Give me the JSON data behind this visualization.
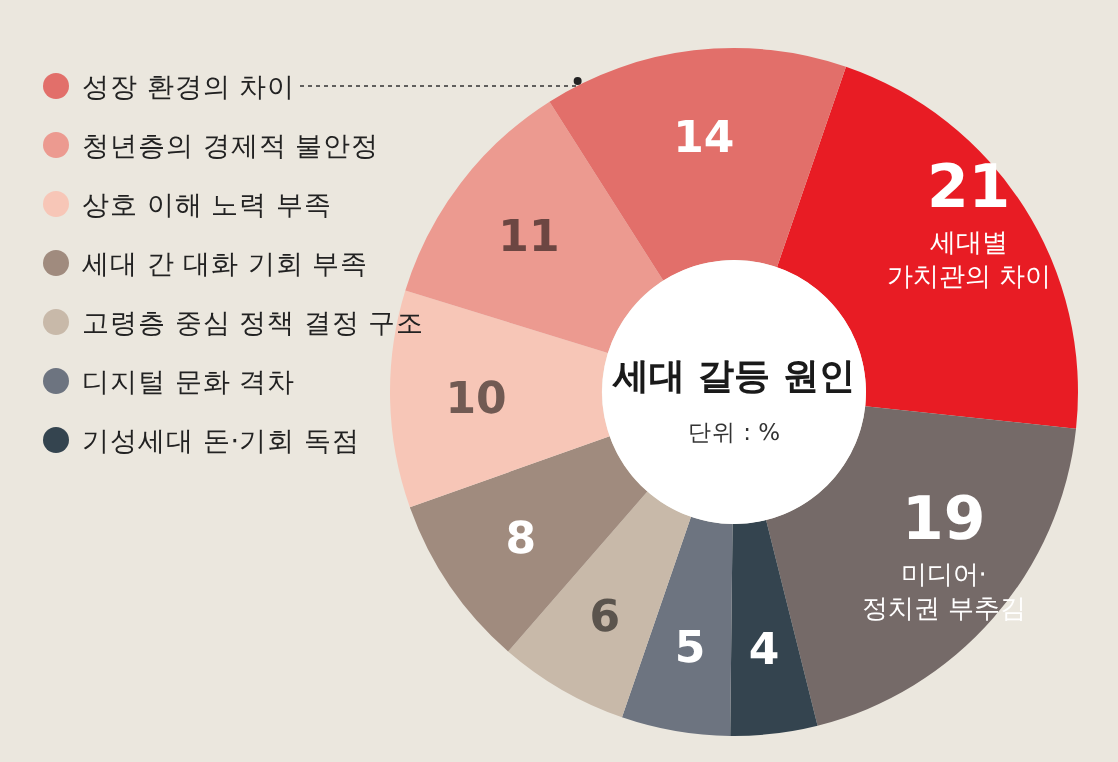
{
  "chart_data": {
    "type": "donut",
    "title": "세대 갈등 원인",
    "subtitle": "단위 : %",
    "categories": [
      "세대별 가치관의 차이",
      "미디어·정치권 부추김",
      "기성세대 돈·기회 독점",
      "디지털 문화 격차",
      "고령층 중심 정책 결정 구조",
      "세대 간 대화 기회 부족",
      "상호 이해 노력 부족",
      "청년층의 경제적 불안정",
      "성장 환경의 차이"
    ],
    "values": [
      21,
      19,
      4,
      5,
      6,
      8,
      10,
      11,
      14
    ],
    "colors": [
      "#e81c24",
      "#756a68",
      "#34444f",
      "#6d7480",
      "#c8b9a9",
      "#a08b7e",
      "#f7c6b7",
      "#ec9a90",
      "#e26f6a"
    ],
    "data_labels": true,
    "legend": "left"
  }
}
